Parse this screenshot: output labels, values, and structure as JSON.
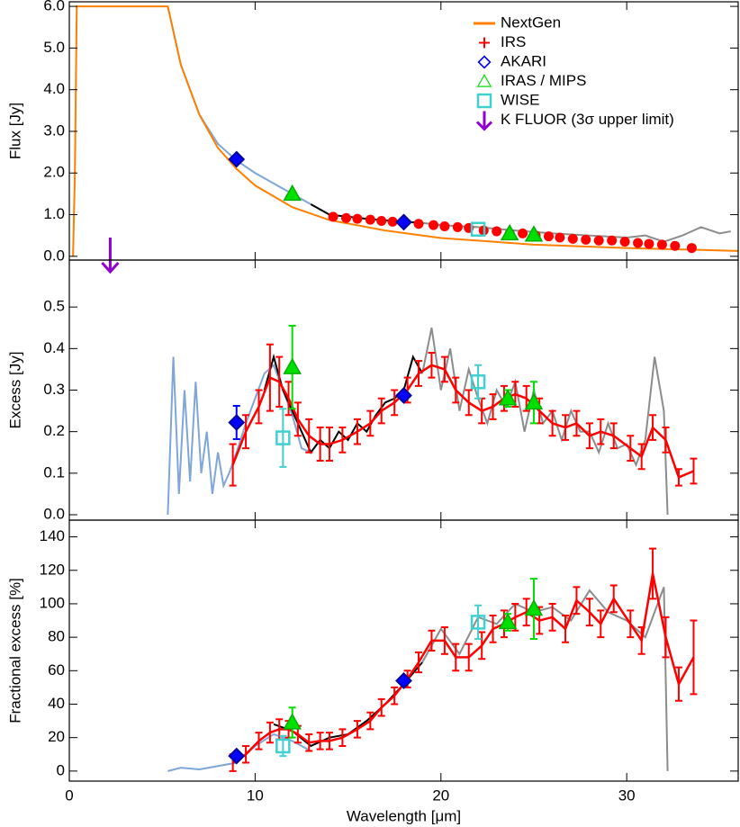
{
  "chart_data": [
    {
      "type": "scatter",
      "ylabel": "Flux [Jy]",
      "ylim": [
        -0.09,
        6.11
      ],
      "yticks": [
        {
          "value": 0,
          "label": "0.0"
        },
        {
          "value": 1,
          "label": "1.0"
        },
        {
          "value": 2,
          "label": "2.0"
        },
        {
          "value": 3,
          "label": "3.0"
        },
        {
          "value": 4,
          "label": "4.0"
        },
        {
          "value": 5,
          "label": "5.0"
        },
        {
          "value": 6,
          "label": "6.0"
        }
      ],
      "legend": "upper right",
      "series": [
        {
          "marker": "line",
          "color": "#7fa6d6",
          "x": [
            5.3,
            6,
            7,
            8,
            9,
            10,
            11,
            12,
            13
          ],
          "values": [
            6.0,
            4.6,
            3.4,
            2.7,
            2.3,
            2.0,
            1.75,
            1.5,
            1.25
          ]
        },
        {
          "marker": "line",
          "color": "#000000",
          "x": [
            13,
            14,
            15,
            16,
            17,
            18,
            19
          ],
          "values": [
            1.25,
            1.0,
            0.95,
            0.9,
            0.86,
            0.83,
            0.8
          ]
        },
        {
          "marker": "line",
          "color": "#8c8c8c",
          "x": [
            19,
            20,
            22,
            24,
            26,
            28,
            30,
            31,
            32,
            33,
            34,
            35,
            35.6
          ],
          "values": [
            0.8,
            0.75,
            0.7,
            0.62,
            0.55,
            0.5,
            0.45,
            0.5,
            0.35,
            0.5,
            0.7,
            0.55,
            0.6
          ]
        },
        {
          "name": "NextGen",
          "marker": "line",
          "color": "#ff8000",
          "x": [
            0.2,
            0.3,
            0.4,
            5.3,
            6,
            7,
            8,
            9,
            10,
            12,
            14,
            17,
            20,
            25,
            30,
            36
          ],
          "values": [
            0,
            2.0,
            6.0,
            6.0,
            4.6,
            3.4,
            2.6,
            2.1,
            1.7,
            1.18,
            0.87,
            0.62,
            0.44,
            0.28,
            0.2,
            0.13
          ]
        },
        {
          "name": "IRS",
          "marker": "circle",
          "legend_marker": "plus",
          "color": "#ff0000",
          "x": [
            14.2,
            14.9,
            15.5,
            16.2,
            16.8,
            17.4,
            18.8,
            19.6,
            20.2,
            20.9,
            21.5,
            22.3,
            23,
            23.7,
            24.4,
            25.1,
            25.8,
            26.4,
            27.1,
            27.8,
            28.5,
            29.2,
            29.9,
            30.6,
            31.2,
            31.9,
            32.6,
            33.5
          ],
          "values": [
            0.95,
            0.92,
            0.9,
            0.88,
            0.85,
            0.83,
            0.78,
            0.75,
            0.72,
            0.7,
            0.68,
            0.62,
            0.6,
            0.55,
            0.55,
            0.5,
            0.48,
            0.45,
            0.42,
            0.4,
            0.38,
            0.38,
            0.35,
            0.32,
            0.3,
            0.28,
            0.25,
            0.2
          ]
        },
        {
          "name": "AKARI",
          "marker": "diamond",
          "color": "#0000ff",
          "x": [
            9,
            18
          ],
          "values": [
            2.33,
            0.82
          ]
        },
        {
          "name": "IRAS / MIPS",
          "marker": "triangle",
          "color": "#00e000",
          "x": [
            12,
            23.7,
            25
          ],
          "values": [
            1.5,
            0.55,
            0.52
          ]
        },
        {
          "name": "WISE",
          "marker": "square",
          "color": "#40d0d0",
          "x": [
            22
          ],
          "values": [
            0.65
          ]
        },
        {
          "name": "K FLUOR (3σ upper limit)",
          "marker": "arrow",
          "color": "#9000d0",
          "x": [
            2.2
          ],
          "values": [
            0.45
          ]
        }
      ]
    },
    {
      "type": "scatter",
      "ylabel": "Excess [Jy]",
      "ylim": [
        -0.013,
        0.613
      ],
      "yticks": [
        {
          "value": 0,
          "label": "0.0"
        },
        0.1,
        0.2,
        0.3,
        0.4,
        0.5
      ],
      "series": [
        {
          "marker": "line",
          "color": "#7fa6d6",
          "x": [
            5.3,
            5.6,
            5.9,
            6.2,
            6.5,
            6.8,
            7.1,
            7.4,
            7.7,
            8,
            8.3,
            8.6,
            9,
            9.5,
            10,
            10.5,
            11,
            11.5,
            12,
            12.5,
            13
          ],
          "values": [
            0,
            0.38,
            0.05,
            0.3,
            0.08,
            0.32,
            0.1,
            0.2,
            0.05,
            0.15,
            0.07,
            0.1,
            0.15,
            0.22,
            0.28,
            0.34,
            0.36,
            0.3,
            0.24,
            0.16,
            0.15
          ]
        },
        {
          "marker": "line",
          "color": "#000000",
          "x": [
            10.5,
            11,
            11.5,
            12,
            12.5,
            13,
            13.5,
            14,
            14.5,
            15,
            15.5,
            16,
            16.5,
            17,
            17.5,
            18,
            18.5,
            19
          ],
          "values": [
            0.3,
            0.38,
            0.3,
            0.25,
            0.2,
            0.15,
            0.18,
            0.16,
            0.2,
            0.18,
            0.22,
            0.2,
            0.24,
            0.27,
            0.28,
            0.3,
            0.38,
            0.34
          ]
        },
        {
          "marker": "line",
          "color": "#8c8c8c",
          "x": [
            19,
            19.5,
            20,
            20.5,
            21,
            21.5,
            22,
            22.5,
            23,
            23.5,
            24,
            24.5,
            25,
            25.5,
            26,
            26.5,
            27,
            27.5,
            28,
            28.5,
            29,
            29.5,
            30,
            30.5,
            31,
            31.5,
            32,
            32.2
          ],
          "values": [
            0.34,
            0.45,
            0.3,
            0.4,
            0.25,
            0.35,
            0.28,
            0.22,
            0.3,
            0.26,
            0.32,
            0.2,
            0.3,
            0.22,
            0.25,
            0.18,
            0.25,
            0.2,
            0.2,
            0.15,
            0.22,
            0.16,
            0.17,
            0.12,
            0.18,
            0.38,
            0.25,
            0
          ]
        },
        {
          "marker": "errline",
          "color": "#ff0000",
          "x": [
            8.8,
            9.5,
            10.2,
            10.8,
            11.3,
            11.8,
            12.3,
            12.9,
            13.5,
            14.0,
            14.7,
            15.5,
            16.2,
            16.8,
            17.5,
            18.2,
            18.8,
            19.5,
            20.2,
            20.8,
            21.5,
            22.2,
            22.8,
            23.4,
            24.0,
            24.6,
            25.3,
            26.0,
            26.7,
            27.3,
            28.0,
            28.6,
            29.3,
            30.2,
            30.8,
            31.4,
            32.1,
            32.8,
            33.6
          ],
          "values": [
            0.12,
            0.2,
            0.26,
            0.33,
            0.32,
            0.28,
            0.23,
            0.19,
            0.17,
            0.17,
            0.18,
            0.2,
            0.22,
            0.25,
            0.27,
            0.3,
            0.34,
            0.36,
            0.35,
            0.3,
            0.27,
            0.25,
            0.26,
            0.28,
            0.29,
            0.28,
            0.25,
            0.22,
            0.21,
            0.22,
            0.19,
            0.2,
            0.19,
            0.16,
            0.14,
            0.21,
            0.18,
            0.09,
            0.105
          ],
          "errors": [
            0.05,
            0.04,
            0.04,
            0.08,
            0.06,
            0.04,
            0.04,
            0.04,
            0.04,
            0.04,
            0.03,
            0.03,
            0.03,
            0.03,
            0.03,
            0.03,
            0.03,
            0.03,
            0.03,
            0.03,
            0.03,
            0.03,
            0.03,
            0.03,
            0.03,
            0.03,
            0.03,
            0.03,
            0.03,
            0.03,
            0.03,
            0.03,
            0.03,
            0.03,
            0.03,
            0.03,
            0.03,
            0.02,
            0.03
          ]
        },
        {
          "marker": "diamond",
          "color": "#0000ff",
          "x": [
            9,
            18
          ],
          "values": [
            0.222,
            0.287
          ],
          "errors": [
            0.04,
            0.01
          ]
        },
        {
          "marker": "triangle",
          "color": "#00e000",
          "x": [
            12,
            23.6,
            25
          ],
          "values": [
            0.355,
            0.28,
            0.27
          ],
          "errors": [
            0.1,
            0.02,
            0.05
          ]
        },
        {
          "marker": "square",
          "color": "#40d0d0",
          "x": [
            11.5,
            22
          ],
          "values": [
            0.185,
            0.32
          ],
          "errors": [
            0.07,
            0.04
          ]
        }
      ]
    },
    {
      "type": "scatter",
      "ylabel": "Fractional excess [%]",
      "xlabel": "Wavelength [μm]",
      "ylim": [
        -6,
        150
      ],
      "xlim": [
        0,
        36
      ],
      "xticks": [
        0,
        10,
        20,
        30
      ],
      "yticks": [
        0,
        20,
        40,
        60,
        80,
        100,
        120,
        140
      ],
      "series": [
        {
          "marker": "line",
          "color": "#7fa6d6",
          "x": [
            5.3,
            6,
            7,
            8,
            9,
            10,
            11,
            12,
            13
          ],
          "values": [
            0,
            2,
            1,
            3,
            5,
            15,
            22,
            18,
            12
          ]
        },
        {
          "marker": "line",
          "color": "#000000",
          "x": [
            11,
            12,
            13,
            14,
            15,
            16,
            17,
            18,
            19
          ],
          "values": [
            28,
            24,
            15,
            20,
            22,
            30,
            40,
            52,
            65
          ]
        },
        {
          "marker": "line",
          "color": "#8c8c8c",
          "x": [
            19,
            20,
            21,
            22,
            23,
            24,
            25,
            26,
            27,
            28,
            29,
            30,
            31,
            32,
            32.2
          ],
          "values": [
            65,
            85,
            70,
            92,
            88,
            100,
            95,
            98,
            90,
            108,
            95,
            90,
            80,
            110,
            0
          ]
        },
        {
          "marker": "errline",
          "color": "#ff0000",
          "x": [
            8.8,
            9.5,
            10.2,
            10.8,
            11.3,
            11.8,
            12.3,
            12.9,
            13.5,
            14.0,
            14.7,
            15.5,
            16.2,
            16.8,
            17.5,
            18.2,
            18.8,
            19.5,
            20.2,
            20.8,
            21.5,
            22.2,
            22.8,
            23.4,
            24.0,
            24.6,
            25.3,
            26.0,
            26.7,
            27.3,
            28.0,
            28.6,
            29.3,
            30.2,
            30.8,
            31.4,
            32.1,
            32.8,
            33.6
          ],
          "values": [
            5,
            10,
            18,
            23,
            25,
            25,
            22,
            17,
            18,
            18,
            20,
            25,
            30,
            38,
            45,
            55,
            65,
            78,
            78,
            68,
            68,
            75,
            85,
            88,
            92,
            95,
            90,
            92,
            85,
            102,
            95,
            88,
            103,
            88,
            78,
            118,
            80,
            52,
            68
          ],
          "errors": [
            5,
            5,
            5,
            6,
            6,
            5,
            5,
            5,
            5,
            5,
            5,
            5,
            5,
            5,
            5,
            5,
            6,
            6,
            8,
            8,
            8,
            8,
            8,
            8,
            8,
            8,
            8,
            8,
            8,
            8,
            8,
            8,
            8,
            8,
            8,
            15,
            12,
            10,
            22
          ]
        },
        {
          "marker": "diamond",
          "color": "#0000ff",
          "x": [
            9,
            18
          ],
          "values": [
            9,
            54
          ],
          "errors": [
            2,
            2
          ]
        },
        {
          "marker": "triangle",
          "color": "#00e000",
          "x": [
            12,
            23.6,
            25
          ],
          "values": [
            29,
            89,
            97
          ],
          "errors": [
            9,
            5,
            18
          ]
        },
        {
          "marker": "square",
          "color": "#40d0d0",
          "x": [
            11.5,
            22
          ],
          "values": [
            15,
            89
          ],
          "errors": [
            6,
            10
          ]
        }
      ]
    }
  ]
}
